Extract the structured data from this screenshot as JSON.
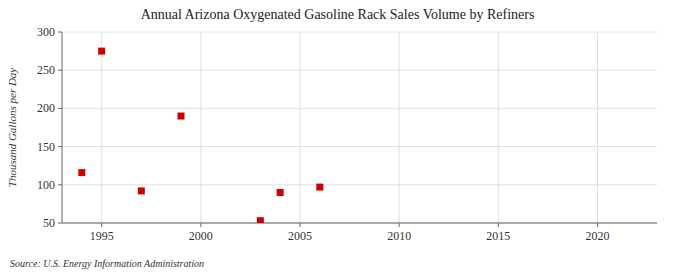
{
  "chart_data": {
    "type": "scatter",
    "title": "Annual Arizona Oxygenated Gasoline Rack Sales Volume by Refiners",
    "ylabel": "Thousand Gallons per Day",
    "annotations": [
      "Source: U.S. Energy Information Administration"
    ],
    "x": [
      1994,
      1995,
      1997,
      1999,
      2003,
      2004,
      2006
    ],
    "values": [
      116,
      275,
      92,
      190,
      53,
      90,
      97
    ],
    "color": "#cc0000",
    "marker": "square",
    "xlim": [
      1993,
      2023
    ],
    "ylim": [
      50,
      300
    ],
    "xticks": [
      1995,
      2000,
      2005,
      2010,
      2015,
      2020
    ],
    "yticks": [
      50,
      100,
      150,
      200,
      250,
      300
    ],
    "grid": true
  }
}
